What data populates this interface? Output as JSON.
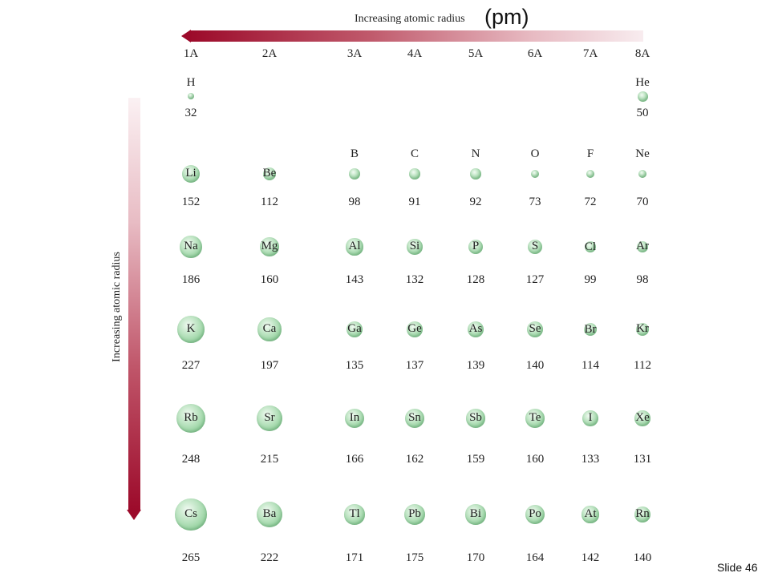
{
  "title": "Increasing atomic radius",
  "unit": "(pm)",
  "side_title": "Increasing atomic radius",
  "groups": [
    "1A",
    "2A",
    "3A",
    "4A",
    "5A",
    "6A",
    "7A",
    "8A"
  ],
  "slide_label": "Slide 46",
  "colors": {
    "arrow": "#9c0a2a",
    "atom": "#9ed6a7"
  },
  "elements": [
    {
      "symbol": "H",
      "radius": 32,
      "period": 1,
      "group": 1
    },
    {
      "symbol": "He",
      "radius": 50,
      "period": 1,
      "group": 8
    },
    {
      "symbol": "Li",
      "radius": 152,
      "period": 2,
      "group": 1
    },
    {
      "symbol": "Be",
      "radius": 112,
      "period": 2,
      "group": 2
    },
    {
      "symbol": "B",
      "radius": 98,
      "period": 2,
      "group": 3
    },
    {
      "symbol": "C",
      "radius": 91,
      "period": 2,
      "group": 4
    },
    {
      "symbol": "N",
      "radius": 92,
      "period": 2,
      "group": 5
    },
    {
      "symbol": "O",
      "radius": 73,
      "period": 2,
      "group": 6
    },
    {
      "symbol": "F",
      "radius": 72,
      "period": 2,
      "group": 7
    },
    {
      "symbol": "Ne",
      "radius": 70,
      "period": 2,
      "group": 8
    },
    {
      "symbol": "Na",
      "radius": 186,
      "period": 3,
      "group": 1
    },
    {
      "symbol": "Mg",
      "radius": 160,
      "period": 3,
      "group": 2
    },
    {
      "symbol": "Al",
      "radius": 143,
      "period": 3,
      "group": 3
    },
    {
      "symbol": "Si",
      "radius": 132,
      "period": 3,
      "group": 4
    },
    {
      "symbol": "P",
      "radius": 128,
      "period": 3,
      "group": 5
    },
    {
      "symbol": "S",
      "radius": 127,
      "period": 3,
      "group": 6
    },
    {
      "symbol": "Cl",
      "radius": 99,
      "period": 3,
      "group": 7
    },
    {
      "symbol": "Ar",
      "radius": 98,
      "period": 3,
      "group": 8
    },
    {
      "symbol": "K",
      "radius": 227,
      "period": 4,
      "group": 1
    },
    {
      "symbol": "Ca",
      "radius": 197,
      "period": 4,
      "group": 2
    },
    {
      "symbol": "Ga",
      "radius": 135,
      "period": 4,
      "group": 3
    },
    {
      "symbol": "Ge",
      "radius": 137,
      "period": 4,
      "group": 4
    },
    {
      "symbol": "As",
      "radius": 139,
      "period": 4,
      "group": 5
    },
    {
      "symbol": "Se",
      "radius": 140,
      "period": 4,
      "group": 6
    },
    {
      "symbol": "Br",
      "radius": 114,
      "period": 4,
      "group": 7
    },
    {
      "symbol": "Kr",
      "radius": 112,
      "period": 4,
      "group": 8
    },
    {
      "symbol": "Rb",
      "radius": 248,
      "period": 5,
      "group": 1
    },
    {
      "symbol": "Sr",
      "radius": 215,
      "period": 5,
      "group": 2
    },
    {
      "symbol": "In",
      "radius": 166,
      "period": 5,
      "group": 3
    },
    {
      "symbol": "Sn",
      "radius": 162,
      "period": 5,
      "group": 4
    },
    {
      "symbol": "Sb",
      "radius": 159,
      "period": 5,
      "group": 5
    },
    {
      "symbol": "Te",
      "radius": 160,
      "period": 5,
      "group": 6
    },
    {
      "symbol": "I",
      "radius": 133,
      "period": 5,
      "group": 7
    },
    {
      "symbol": "Xe",
      "radius": 131,
      "period": 5,
      "group": 8
    },
    {
      "symbol": "Cs",
      "radius": 265,
      "period": 6,
      "group": 1
    },
    {
      "symbol": "Ba",
      "radius": 222,
      "period": 6,
      "group": 2
    },
    {
      "symbol": "Tl",
      "radius": 171,
      "period": 6,
      "group": 3
    },
    {
      "symbol": "Pb",
      "radius": 175,
      "period": 6,
      "group": 4
    },
    {
      "symbol": "Bi",
      "radius": 170,
      "period": 6,
      "group": 5
    },
    {
      "symbol": "Po",
      "radius": 164,
      "period": 6,
      "group": 6
    },
    {
      "symbol": "At",
      "radius": 142,
      "period": 6,
      "group": 7
    },
    {
      "symbol": "Rn",
      "radius": 140,
      "period": 6,
      "group": 8
    }
  ]
}
